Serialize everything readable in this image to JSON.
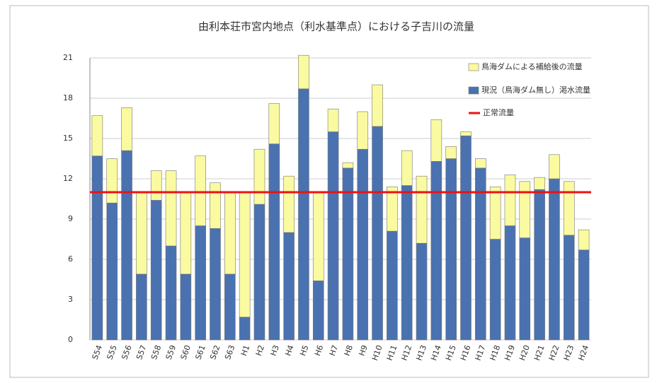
{
  "chart_data": {
    "type": "stacked_bar",
    "title": "由利本荘市宮内地点（利水基準点）における子吉川の流量",
    "categories": [
      "S54",
      "S55",
      "S56",
      "S57",
      "S58",
      "S59",
      "S60",
      "S61",
      "S62",
      "S63",
      "H1",
      "H2",
      "H3",
      "H4",
      "H5",
      "H6",
      "H7",
      "H8",
      "H9",
      "H10",
      "H11",
      "H12",
      "H13",
      "H14",
      "H15",
      "H16",
      "H17",
      "H18",
      "H19",
      "H20",
      "H21",
      "H22",
      "H23",
      "H24"
    ],
    "series": [
      {
        "name": "現況（鳥海ダム無し）渇水流量",
        "color": "#4a72b0",
        "values": [
          13.7,
          10.2,
          14.1,
          4.9,
          10.4,
          7.0,
          4.9,
          8.5,
          8.3,
          4.9,
          1.7,
          10.1,
          14.6,
          8.0,
          18.7,
          4.4,
          15.5,
          12.8,
          14.2,
          15.9,
          8.1,
          11.5,
          7.2,
          13.3,
          13.5,
          15.2,
          12.8,
          7.5,
          8.5,
          7.6,
          11.2,
          12.0,
          7.8,
          6.7
        ]
      },
      {
        "name": "鳥海ダムによる補給後の流量",
        "color": "#fafaa0",
        "values": [
          3.0,
          3.3,
          3.2,
          6.1,
          2.2,
          5.6,
          6.1,
          5.2,
          3.4,
          6.1,
          9.3,
          4.1,
          3.0,
          4.2,
          2.5,
          6.6,
          1.7,
          0.4,
          2.8,
          3.1,
          3.3,
          2.6,
          5.0,
          3.1,
          0.9,
          0.3,
          0.7,
          3.9,
          3.8,
          4.2,
          0.9,
          1.8,
          4.0,
          1.5
        ]
      }
    ],
    "reference_line": {
      "name": "正常流量",
      "value": 11,
      "color": "#ee1111"
    },
    "ylim": [
      0,
      21
    ],
    "yticks": [
      0,
      3,
      6,
      9,
      12,
      15,
      18,
      21
    ],
    "grid": true
  }
}
